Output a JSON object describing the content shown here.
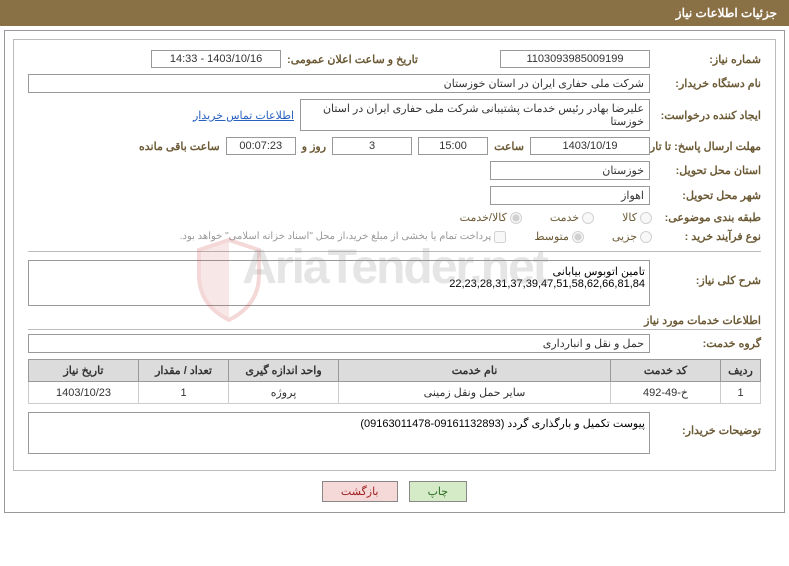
{
  "header": {
    "title": "جزئیات اطلاعات نیاز"
  },
  "fields": {
    "need_number_label": "شماره نیاز:",
    "need_number": "1103093985009199",
    "announce_date_label": "تاریخ و ساعت اعلان عمومی:",
    "announce_date": "1403/10/16 - 14:33",
    "buyer_org_label": "نام دستگاه خریدار:",
    "buyer_org": "شرکت ملی حفاری ایران در استان خوزستان",
    "requester_label": "ایجاد کننده درخواست:",
    "requester": "علیرضا بهادر رئیس خدمات پشتیبانی شرکت ملی حفاری ایران در استان خوزستا",
    "contact_link": "اطلاعات تماس خریدار",
    "deadline_label": "مهلت ارسال پاسخ: تا تاریخ:",
    "deadline_date": "1403/10/19",
    "time_label": "ساعت",
    "deadline_time": "15:00",
    "days_value": "3",
    "days_and": "روز و",
    "countdown": "00:07:23",
    "remaining_label": "ساعت باقی مانده",
    "province_label": "استان محل تحویل:",
    "province": "خوزستان",
    "city_label": "شهر محل تحویل:",
    "city": "اهواز",
    "category_label": "طبقه بندی موضوعی:",
    "radio_goods": "کالا",
    "radio_service": "خدمت",
    "radio_goods_service": "کالا/خدمت",
    "process_label": "نوع فرآیند خرید :",
    "radio_partial": "جزیی",
    "radio_medium": "متوسط",
    "payment_note": "پرداخت تمام یا بخشی از مبلغ خرید،از محل \"اسناد خزانه اسلامی\" خواهد بود.",
    "description_label": "شرح کلی نیاز:",
    "description_text": "تامین اتوبوس بیابانی\n22,23,28,31,37,39,47,51,58,62,66,81,84",
    "services_info_title": "اطلاعات خدمات مورد نیاز",
    "service_group_label": "گروه خدمت:",
    "service_group": "حمل و نقل و انبارداری",
    "buyer_notes_label": "توضیحات خریدار:",
    "buyer_notes": "پیوست تکمیل و بارگذاری گردد (09161132893-09163011478)"
  },
  "table": {
    "headers": {
      "row": "ردیف",
      "code": "کد خدمت",
      "name": "نام خدمت",
      "unit": "واحد اندازه گیری",
      "qty": "تعداد / مقدار",
      "date": "تاریخ نیاز"
    },
    "rows": [
      {
        "row": "1",
        "code": "خ-49-492",
        "name": "سایر حمل ونقل زمینی",
        "unit": "پروژه",
        "qty": "1",
        "date": "1403/10/23"
      }
    ]
  },
  "buttons": {
    "print": "چاپ",
    "back": "بازگشت"
  },
  "watermark": "AriaTender.net",
  "colors": {
    "header_bg": "#8a7045",
    "label_color": "#6b5a35",
    "link_color": "#2860c0"
  }
}
